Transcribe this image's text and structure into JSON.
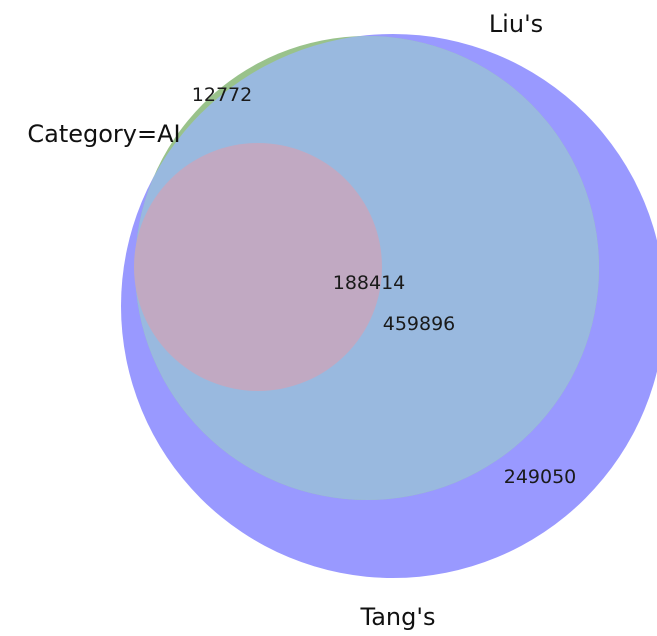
{
  "venn": {
    "sets": [
      {
        "key": "category_ai",
        "label": "Category=AI",
        "color": "#d4a0a8"
      },
      {
        "key": "lius",
        "label": "Liu's",
        "color": "#74b874"
      },
      {
        "key": "tangs",
        "label": "Tang's",
        "color": "#5c5cff"
      }
    ],
    "regions": {
      "ai_liu_tang": "188414",
      "liu_tang_only": "459896",
      "tang_only": "249050",
      "liu_only": "12772"
    }
  },
  "colors": {
    "tang_fill": "#9999ff",
    "liu_fill": "#99b9df",
    "ai_fill": "#c1a9c2",
    "liu_only_fill": "#99c28b",
    "background": "#ffffff"
  }
}
